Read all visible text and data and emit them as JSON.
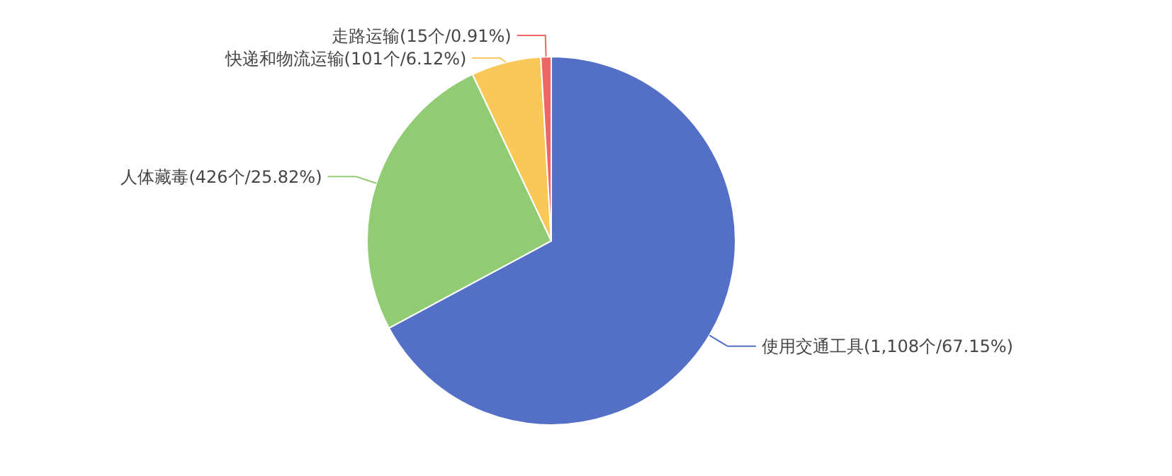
{
  "chart_data": {
    "type": "pie",
    "categories": [
      "使用交通工具",
      "人体藏毒",
      "快递和物流运输",
      "走路运输"
    ],
    "values": [
      67.15,
      25.82,
      6.12,
      0.91
    ],
    "colors": [
      "#5470c6",
      "#91cc75",
      "#fac858",
      "#ee6666"
    ],
    "value_labels": [
      "(1,108个/67.15%)",
      "(426个/25.82%)",
      "(101个/6.12%)",
      "(15个/0.91%)"
    ]
  }
}
